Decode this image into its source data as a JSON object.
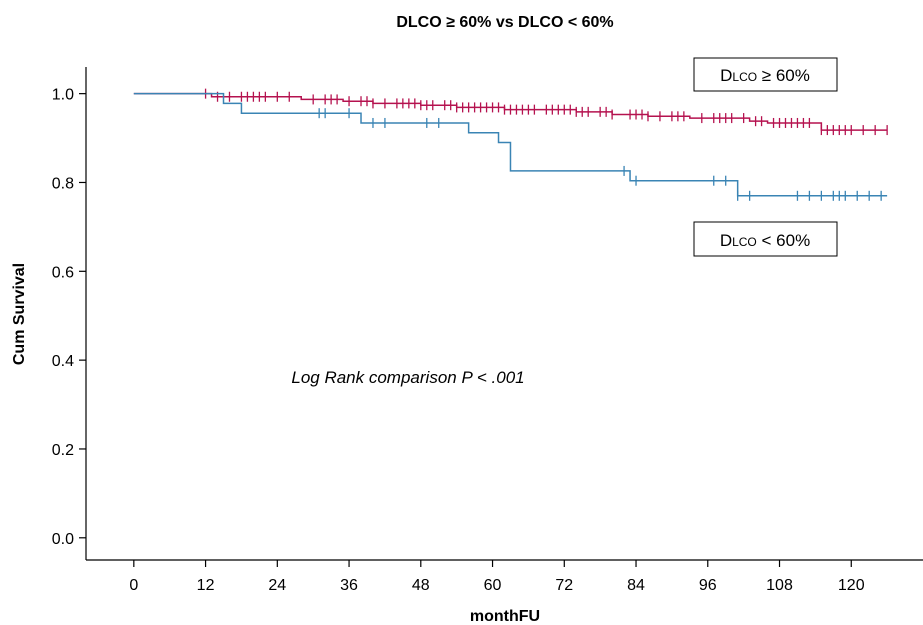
{
  "chart_data": {
    "type": "line",
    "title": "DLCO ≥ 60% vs DLCO < 60%",
    "xlabel": "monthFU",
    "ylabel": "Cum Survival",
    "xlim": [
      -8,
      132
    ],
    "ylim": [
      -0.05,
      1.06
    ],
    "xticks": [
      0,
      12,
      24,
      36,
      48,
      60,
      72,
      84,
      96,
      108,
      120
    ],
    "yticks": [
      0.0,
      0.2,
      0.4,
      0.6,
      0.8,
      1.0
    ],
    "ytick_labels": [
      "0.0",
      "0.2",
      "0.4",
      "0.6",
      "0.8",
      "1.0"
    ],
    "annotation": "Log Rank comparison P < .001",
    "series": [
      {
        "name": "DLCO ≥ 60%",
        "color": "#b5124f",
        "steps": [
          [
            0,
            1.0
          ],
          [
            13,
            0.993
          ],
          [
            28,
            0.987
          ],
          [
            35,
            0.983
          ],
          [
            40,
            0.978
          ],
          [
            48,
            0.974
          ],
          [
            54,
            0.969
          ],
          [
            62,
            0.964
          ],
          [
            74,
            0.959
          ],
          [
            80,
            0.953
          ],
          [
            86,
            0.949
          ],
          [
            93,
            0.945
          ],
          [
            103,
            0.938
          ],
          [
            106,
            0.934
          ],
          [
            115,
            0.918
          ],
          [
            126,
            0.918
          ]
        ],
        "censor_x": [
          12,
          14,
          16,
          18,
          19,
          20,
          21,
          22,
          24,
          26,
          30,
          32,
          33,
          34,
          36,
          38,
          39,
          40,
          42,
          44,
          45,
          46,
          47,
          48,
          49,
          50,
          52,
          53,
          54,
          55,
          56,
          57,
          58,
          59,
          60,
          61,
          62,
          63,
          64,
          65,
          66,
          67,
          69,
          70,
          71,
          72,
          73,
          74,
          75,
          76,
          78,
          79,
          80,
          83,
          84,
          85,
          86,
          88,
          90,
          91,
          92,
          95,
          97,
          98,
          99,
          100,
          102,
          104,
          105,
          107,
          108,
          109,
          110,
          111,
          112,
          113,
          115,
          116,
          117,
          118,
          119,
          120,
          122,
          124,
          126
        ]
      },
      {
        "name": "DLCO < 60%",
        "color": "#3a84b4",
        "steps": [
          [
            0,
            1.0
          ],
          [
            15,
            0.978
          ],
          [
            18,
            0.956
          ],
          [
            38,
            0.934
          ],
          [
            56,
            0.912
          ],
          [
            61,
            0.89
          ],
          [
            63,
            0.826
          ],
          [
            83,
            0.804
          ],
          [
            101,
            0.77
          ],
          [
            126,
            0.77
          ]
        ],
        "censor_x": [
          31,
          32,
          36,
          40,
          42,
          49,
          51,
          82,
          84,
          97,
          99,
          101,
          103,
          111,
          113,
          115,
          117,
          118,
          119,
          121,
          123,
          125
        ]
      }
    ],
    "legend_labels": [
      {
        "main": "D",
        "sub": "LCO",
        "rest": " ≥ 60%"
      },
      {
        "main": "D",
        "sub": "LCO",
        "rest": " < 60%"
      }
    ]
  }
}
